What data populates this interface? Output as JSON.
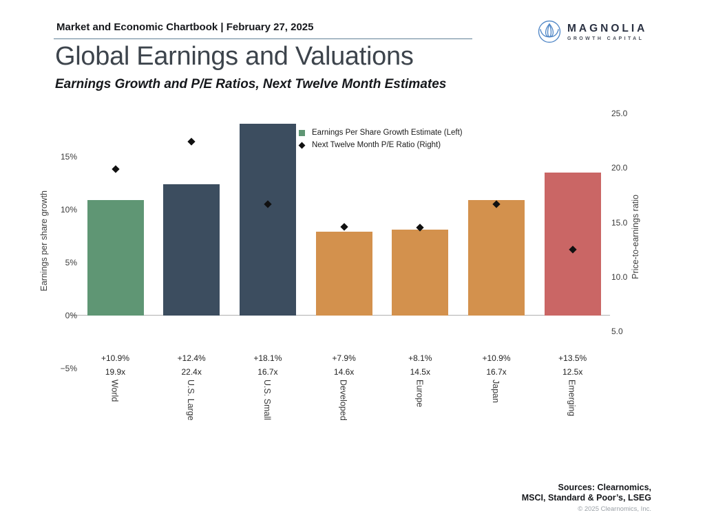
{
  "header": {
    "chartbook_label": "Market and Economic Chartbook | February 27, 2025"
  },
  "logo": {
    "name": "MAGNOLIA",
    "tagline": "GROWTH CAPITAL",
    "icon": "magnolia-flower-icon",
    "icon_color": "#4f86c6"
  },
  "title": "Global Earnings and Valuations",
  "subtitle": "Earnings Growth and P/E Ratios, Next Twelve Month Estimates",
  "chart_data": {
    "type": "bar",
    "title": "Global Earnings and Valuations",
    "categories": [
      "World",
      "U.S. Large",
      "U.S. Small",
      "Developed",
      "Europe",
      "Japan",
      "Emerging"
    ],
    "series": [
      {
        "name": "Earnings Per Share Growth Estimate (Left)",
        "type": "bar",
        "axis": "left",
        "values": [
          10.9,
          12.4,
          18.1,
          7.9,
          8.1,
          10.9,
          13.5
        ],
        "labels": [
          "+10.9%",
          "+12.4%",
          "+18.1%",
          "+7.9%",
          "+8.1%",
          "+10.9%",
          "+13.5%"
        ]
      },
      {
        "name": "Next Twelve Month P/E Ratio (Right)",
        "type": "scatter",
        "marker": "diamond",
        "axis": "right",
        "color": "#111111",
        "values": [
          19.9,
          22.4,
          16.7,
          14.6,
          14.5,
          16.7,
          12.5
        ],
        "labels": [
          "19.9x",
          "22.4x",
          "16.7x",
          "14.6x",
          "14.5x",
          "16.7x",
          "12.5x"
        ]
      }
    ],
    "bar_colors": [
      "#5f9674",
      "#3c4d5f",
      "#3c4d5f",
      "#d3914d",
      "#d3914d",
      "#d3914d",
      "#ca6665"
    ],
    "ylabel_left": "Earnings per share growth",
    "ylabel_right": "Price-to-earnings ratio",
    "left_ticks": [
      {
        "label": "15%",
        "value": 15
      },
      {
        "label": "10%",
        "value": 10
      },
      {
        "label": "5%",
        "value": 5
      },
      {
        "label": "0%",
        "value": 0
      },
      {
        "label": "−5%",
        "value": -5
      }
    ],
    "right_ticks": [
      {
        "label": "25.0",
        "value": 25
      },
      {
        "label": "20.0",
        "value": 20
      },
      {
        "label": "15.0",
        "value": 15
      },
      {
        "label": "10.0",
        "value": 10
      },
      {
        "label": "5.0",
        "value": 5
      }
    ],
    "ylim_left": [
      -5,
      20
    ],
    "ylim_right": [
      5,
      25
    ],
    "grid": false,
    "legend_position": "upper-center",
    "legend": [
      {
        "label": "Earnings Per Share Growth Estimate (Left)",
        "swatch": "square",
        "color": "#5f9674"
      },
      {
        "label": "Next Twelve Month P/E Ratio (Right)",
        "swatch": "diamond",
        "color": "#111111"
      }
    ]
  },
  "footer": {
    "sources_line1": "Sources: Clearnomics,",
    "sources_line2": "MSCI, Standard & Poor’s, LSEG",
    "copyright": "© 2025 Clearnomics, Inc."
  }
}
